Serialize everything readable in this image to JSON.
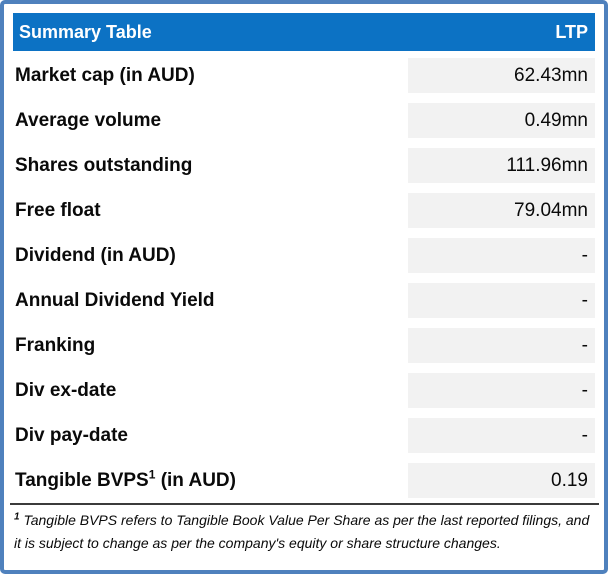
{
  "header": {
    "title": "Summary Table",
    "column_label": "LTP"
  },
  "rows": [
    {
      "label": "Market cap (in AUD)",
      "value": "62.43mn"
    },
    {
      "label": "Average volume",
      "value": "0.49mn"
    },
    {
      "label": "Shares outstanding",
      "value": "111.96mn"
    },
    {
      "label": "Free float",
      "value": "79.04mn"
    },
    {
      "label": "Dividend (in AUD)",
      "value": "-"
    },
    {
      "label": "Annual Dividend Yield",
      "value": "-"
    },
    {
      "label": "Franking",
      "value": "-"
    },
    {
      "label": "Div ex-date",
      "value": "-"
    },
    {
      "label": "Div pay-date",
      "value": "-"
    },
    {
      "label_pre": "Tangible BVPS",
      "footnote_marker": "1",
      "label_post": " (in AUD)",
      "value": "0.19"
    }
  ],
  "footnote": {
    "marker": "1",
    "text": " Tangible BVPS refers to Tangible Book Value Per Share as per the last reported filings, and it is subject to change as per the company's equity or share structure changes."
  },
  "colors": {
    "header_bg": "#0c72c4",
    "border": "#4f81bd",
    "value_cell_bg": "#f2f2f2",
    "divider": "#3b3b3b"
  }
}
